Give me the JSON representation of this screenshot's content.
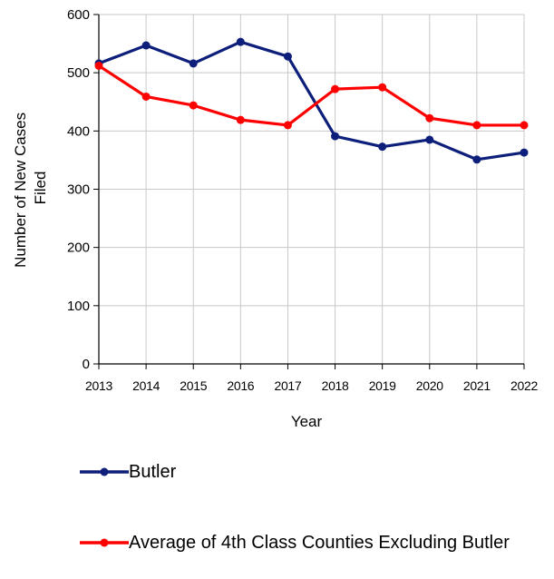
{
  "chart_data": {
    "type": "line",
    "categories": [
      "2013",
      "2014",
      "2015",
      "2016",
      "2017",
      "2018",
      "2019",
      "2020",
      "2021",
      "2022"
    ],
    "series": [
      {
        "name": "Butler",
        "color": "#0d1f7a",
        "values": [
          516,
          547,
          516,
          553,
          528,
          391,
          373,
          385,
          351,
          363
        ]
      },
      {
        "name": "Average of 4th Class Counties Excluding Butler",
        "color": "#ff0000",
        "values": [
          512,
          459,
          444,
          419,
          410,
          472,
          475,
          422,
          410,
          410
        ]
      }
    ],
    "title": "",
    "xlabel": "Year",
    "ylabel_lines": [
      "Number of New Cases",
      "Filed"
    ],
    "ylim": [
      0,
      600
    ],
    "yticks": [
      "0",
      "100",
      "200",
      "300",
      "400",
      "500",
      "600"
    ],
    "grid": true,
    "legend_position": "bottom"
  }
}
